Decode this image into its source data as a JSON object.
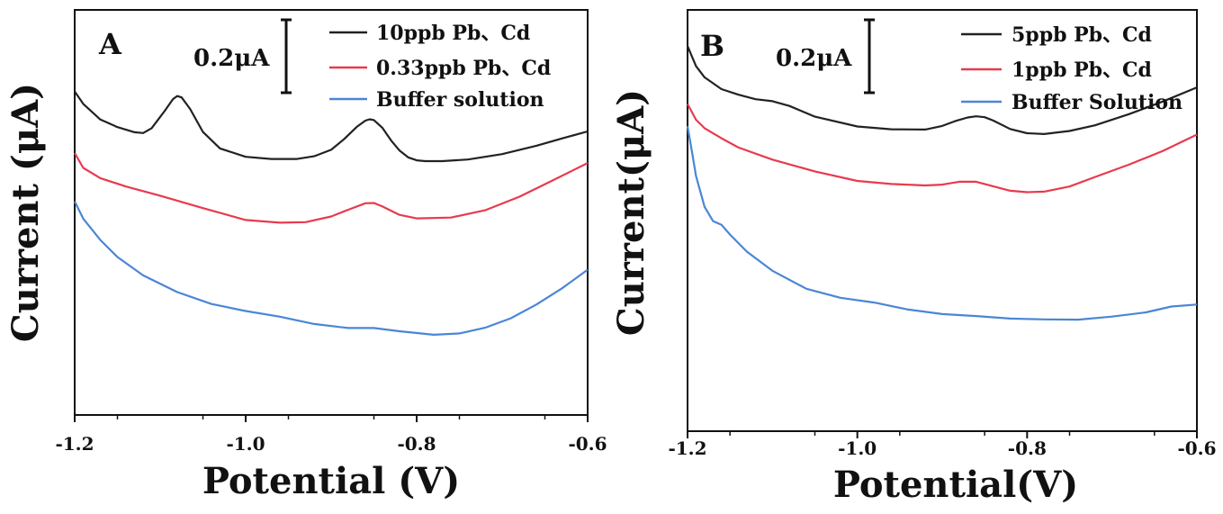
{
  "chart_data": [
    {
      "type": "line",
      "panel_label": "A",
      "xlabel": "Potential (V)",
      "ylabel": "Current (μA)",
      "xlim": [
        -1.2,
        -0.6
      ],
      "ylim": [
        0,
        1.5
      ],
      "xticks": [
        "-1.2",
        "-1.0",
        "-0.8",
        "-0.6"
      ],
      "scale_bar_label": "0.2μA",
      "scale_bar_value": 0.2,
      "legend_position": "top-right",
      "series": [
        {
          "name": "10ppb Pb、Cd",
          "color": "#222222",
          "x": [
            -1.2,
            -1.19,
            -1.17,
            -1.15,
            -1.13,
            -1.12,
            -1.11,
            -1.095,
            -1.085,
            -1.08,
            -1.075,
            -1.065,
            -1.05,
            -1.03,
            -1.0,
            -0.97,
            -0.94,
            -0.92,
            -0.9,
            -0.885,
            -0.87,
            -0.86,
            -0.855,
            -0.85,
            -0.84,
            -0.83,
            -0.82,
            -0.81,
            -0.8,
            -0.79,
            -0.77,
            -0.74,
            -0.7,
            -0.66,
            -0.63,
            -0.6
          ],
          "y": [
            1.198,
            1.152,
            1.094,
            1.066,
            1.047,
            1.044,
            1.062,
            1.125,
            1.17,
            1.181,
            1.176,
            1.133,
            1.048,
            0.987,
            0.956,
            0.948,
            0.948,
            0.958,
            0.982,
            1.021,
            1.067,
            1.09,
            1.095,
            1.092,
            1.063,
            1.017,
            0.979,
            0.954,
            0.943,
            0.94,
            0.94,
            0.946,
            0.966,
            0.997,
            1.024,
            1.05
          ]
        },
        {
          "name": "0.33ppb Pb、Cd",
          "color": "#e83a4e",
          "x": [
            -1.2,
            -1.19,
            -1.17,
            -1.14,
            -1.1,
            -1.05,
            -1.0,
            -0.96,
            -0.93,
            -0.9,
            -0.88,
            -0.86,
            -0.85,
            -0.84,
            -0.82,
            -0.8,
            -0.76,
            -0.72,
            -0.68,
            -0.64,
            -0.6
          ],
          "y": [
            0.97,
            0.915,
            0.877,
            0.846,
            0.812,
            0.766,
            0.722,
            0.712,
            0.714,
            0.735,
            0.76,
            0.784,
            0.785,
            0.772,
            0.741,
            0.728,
            0.731,
            0.758,
            0.808,
            0.87,
            0.933
          ]
        },
        {
          "name": "Buffer solution",
          "color": "#4a86d6",
          "x": [
            -1.2,
            -1.19,
            -1.17,
            -1.15,
            -1.12,
            -1.08,
            -1.04,
            -1.0,
            -0.96,
            -0.92,
            -0.88,
            -0.85,
            -0.82,
            -0.78,
            -0.75,
            -0.72,
            -0.69,
            -0.66,
            -0.63,
            -0.6
          ],
          "y": [
            0.791,
            0.727,
            0.648,
            0.585,
            0.517,
            0.455,
            0.411,
            0.385,
            0.364,
            0.337,
            0.322,
            0.322,
            0.31,
            0.297,
            0.302,
            0.323,
            0.358,
            0.409,
            0.469,
            0.538
          ]
        }
      ]
    },
    {
      "type": "line",
      "panel_label": "B",
      "xlabel": "Potential(V)",
      "ylabel": "Current(μA)",
      "xlim": [
        -1.2,
        -0.6
      ],
      "ylim": [
        0,
        1.5
      ],
      "xticks": [
        "-1.2",
        "-1.0",
        "-0.8",
        "-0.6"
      ],
      "scale_bar_label": "0.2μA",
      "scale_bar_value": 0.2,
      "legend_position": "top-right",
      "series": [
        {
          "name": "5ppb Pb、Cd",
          "color": "#222222",
          "x": [
            -1.2,
            -1.19,
            -1.18,
            -1.16,
            -1.14,
            -1.12,
            -1.1,
            -1.08,
            -1.05,
            -1.0,
            -0.96,
            -0.92,
            -0.9,
            -0.885,
            -0.87,
            -0.86,
            -0.85,
            -0.84,
            -0.82,
            -0.8,
            -0.78,
            -0.75,
            -0.72,
            -0.68,
            -0.64,
            -0.6
          ],
          "y": [
            1.371,
            1.3,
            1.26,
            1.218,
            1.198,
            1.182,
            1.175,
            1.158,
            1.12,
            1.085,
            1.075,
            1.074,
            1.087,
            1.104,
            1.117,
            1.121,
            1.118,
            1.106,
            1.076,
            1.061,
            1.058,
            1.069,
            1.089,
            1.129,
            1.174,
            1.224
          ]
        },
        {
          "name": "1ppb Pb、Cd",
          "color": "#e83a4e",
          "x": [
            -1.2,
            -1.19,
            -1.18,
            -1.16,
            -1.14,
            -1.1,
            -1.05,
            -1.0,
            -0.96,
            -0.92,
            -0.9,
            -0.88,
            -0.86,
            -0.84,
            -0.82,
            -0.8,
            -0.78,
            -0.75,
            -0.72,
            -0.68,
            -0.64,
            -0.6
          ],
          "y": [
            1.165,
            1.109,
            1.079,
            1.043,
            1.01,
            0.967,
            0.925,
            0.891,
            0.88,
            0.875,
            0.878,
            0.888,
            0.888,
            0.872,
            0.856,
            0.851,
            0.853,
            0.871,
            0.905,
            0.949,
            0.998,
            1.056
          ]
        },
        {
          "name": "Buffer Solution",
          "color": "#4a86d6",
          "x": [
            -1.2,
            -1.195,
            -1.19,
            -1.18,
            -1.17,
            -1.16,
            -1.15,
            -1.13,
            -1.1,
            -1.06,
            -1.02,
            -0.98,
            -0.94,
            -0.9,
            -0.86,
            -0.82,
            -0.78,
            -0.74,
            -0.7,
            -0.66,
            -0.63,
            -0.6
          ],
          "y": [
            1.086,
            0.999,
            0.909,
            0.799,
            0.748,
            0.735,
            0.7,
            0.639,
            0.571,
            0.507,
            0.475,
            0.458,
            0.433,
            0.417,
            0.41,
            0.401,
            0.398,
            0.397,
            0.408,
            0.423,
            0.444,
            0.451
          ]
        }
      ]
    }
  ]
}
